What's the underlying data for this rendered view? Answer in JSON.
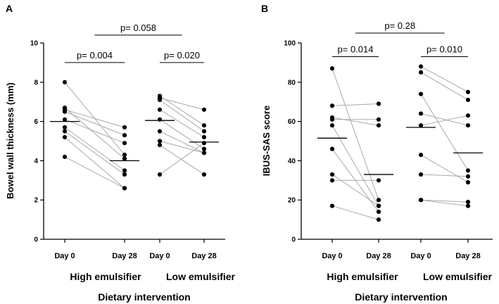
{
  "chart_data": [
    {
      "type": "scatter",
      "panel": "A",
      "ylabel": "Bowel wall thickness (mm)",
      "ylim": [
        0,
        10
      ],
      "yticks": [
        0,
        2,
        4,
        6,
        8,
        10
      ],
      "xlabel": "Dietary intervention",
      "categories": [
        "Day 0",
        "Day 28",
        "Day 0",
        "Day 28"
      ],
      "groups": [
        "High emulsifier",
        "Low emulsifier"
      ],
      "series": [
        {
          "name": "High emulsifier",
          "pairs": [
            [
              8.0,
              4.3
            ],
            [
              6.7,
              4.1
            ],
            [
              6.6,
              5.7
            ],
            [
              6.5,
              5.3
            ],
            [
              6.1,
              4.9
            ],
            [
              5.7,
              3.5
            ],
            [
              5.5,
              3.3
            ],
            [
              5.2,
              2.6
            ],
            [
              4.2,
              2.6
            ]
          ],
          "medians": [
            6.0,
            4.0
          ]
        },
        {
          "name": "Low emulsifier",
          "pairs": [
            [
              7.3,
              5.8
            ],
            [
              7.2,
              6.6
            ],
            [
              7.1,
              5.5
            ],
            [
              6.6,
              5.2
            ],
            [
              6.1,
              4.6
            ],
            [
              5.5,
              4.4
            ],
            [
              5.0,
              4.4
            ],
            [
              4.8,
              3.3
            ],
            [
              3.3,
              4.9
            ]
          ],
          "medians": [
            6.05,
            4.95
          ]
        }
      ],
      "annotations": [
        {
          "text": "p= 0.004",
          "from": 0,
          "to": 1,
          "y": 9.0
        },
        {
          "text": "p= 0.020",
          "from": 2,
          "to": 3,
          "y": 9.0
        },
        {
          "text": "p= 0.058",
          "from": 0.5,
          "to": 2.5,
          "y": 10.4
        }
      ]
    },
    {
      "type": "scatter",
      "panel": "B",
      "ylabel": "IBUS-SAS score",
      "ylim": [
        0,
        100
      ],
      "yticks": [
        0,
        20,
        40,
        60,
        80,
        100
      ],
      "xlabel": "Dietary intervention",
      "categories": [
        "Day 0",
        "Day 28",
        "Day 0",
        "Day 28"
      ],
      "groups": [
        "High emulsifier",
        "Low emulsifier"
      ],
      "series": [
        {
          "name": "High emulsifier",
          "pairs": [
            [
              87,
              20
            ],
            [
              68,
              69
            ],
            [
              62,
              58
            ],
            [
              61,
              61
            ],
            [
              58,
              17
            ],
            [
              46,
              14
            ],
            [
              33,
              17
            ],
            [
              30,
              30
            ],
            [
              17,
              10
            ]
          ],
          "medians": [
            51.5,
            33
          ]
        },
        {
          "name": "Low emulsifier",
          "pairs": [
            [
              88,
              75
            ],
            [
              85,
              71
            ],
            [
              74,
              35
            ],
            [
              64,
              58
            ],
            [
              58,
              63
            ],
            [
              43,
              29
            ],
            [
              33,
              32
            ],
            [
              20,
              19
            ],
            [
              20,
              17
            ]
          ],
          "medians": [
            57,
            44
          ]
        }
      ],
      "annotations": [
        {
          "text": "p= 0.014",
          "from": 0,
          "to": 1,
          "y": 93
        },
        {
          "text": "p= 0.010",
          "from": 2,
          "to": 3,
          "y": 93
        },
        {
          "text": "p= 0.28",
          "from": 0.5,
          "to": 2.5,
          "y": 105
        }
      ]
    }
  ]
}
